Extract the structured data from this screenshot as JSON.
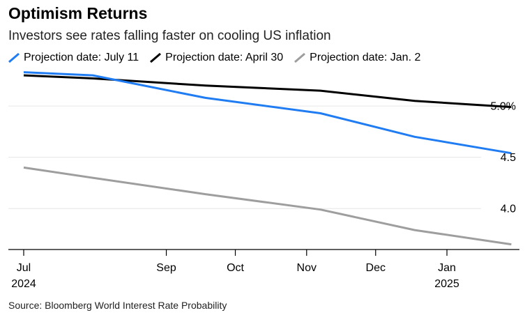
{
  "title": "Optimism Returns",
  "subtitle": "Investors see rates falling faster on cooling US inflation",
  "source": "Source: Bloomberg World Interest Rate Probability",
  "chart_data": {
    "type": "line",
    "ylim": [
      3.6,
      5.45
    ],
    "xlim": [
      "2024-07-01",
      "2025-01-31"
    ],
    "yticks": [
      {
        "value": 4.0,
        "label": "4.0"
      },
      {
        "value": 4.5,
        "label": "4.5"
      },
      {
        "value": 5.0,
        "label": "5.0%"
      }
    ],
    "xticks": [
      {
        "date": "2024-07-01",
        "label": "Jul",
        "sublabel": "2024"
      },
      {
        "date": "2024-09-01",
        "label": "Sep",
        "sublabel": ""
      },
      {
        "date": "2024-10-01",
        "label": "Oct",
        "sublabel": ""
      },
      {
        "date": "2024-11-01",
        "label": "Nov",
        "sublabel": ""
      },
      {
        "date": "2024-12-01",
        "label": "Dec",
        "sublabel": ""
      },
      {
        "date": "2025-01-01",
        "label": "Jan",
        "sublabel": "2025"
      }
    ],
    "grid": true,
    "legend_position": "top",
    "series": [
      {
        "name": "Projection date: July 11",
        "color": "#1f7cf2",
        "x": [
          "2024-07-01",
          "2024-07-31",
          "2024-09-18",
          "2024-11-07",
          "2024-12-18",
          "2025-01-29"
        ],
        "y": [
          5.33,
          5.3,
          5.08,
          4.93,
          4.7,
          4.54
        ]
      },
      {
        "name": "Projection date: April 30",
        "color": "#000000",
        "x": [
          "2024-07-01",
          "2024-07-31",
          "2024-09-18",
          "2024-11-07",
          "2024-12-18",
          "2025-01-29"
        ],
        "y": [
          5.3,
          5.27,
          5.2,
          5.15,
          5.05,
          4.99
        ]
      },
      {
        "name": "Projection date: Jan. 2",
        "color": "#9e9e9e",
        "x": [
          "2024-07-01",
          "2024-07-31",
          "2024-09-18",
          "2024-11-07",
          "2024-12-18",
          "2025-01-29"
        ],
        "y": [
          4.4,
          4.3,
          4.14,
          3.99,
          3.79,
          3.65
        ]
      }
    ]
  }
}
